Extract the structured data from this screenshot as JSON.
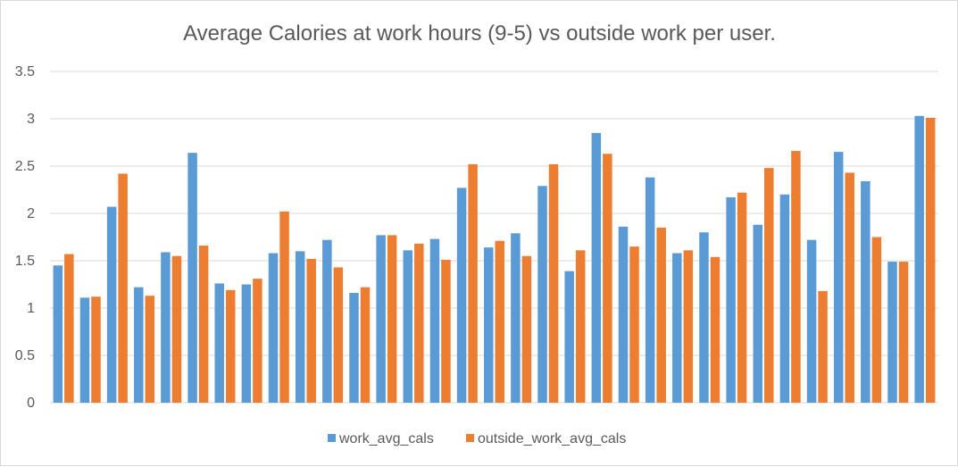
{
  "chart_data": {
    "type": "bar",
    "title": "Average Calories at work hours (9-5) vs outside work per user.",
    "xlabel": "",
    "ylabel": "",
    "ylim": [
      0,
      3.5
    ],
    "yticks": [
      "0",
      "0.5",
      "1",
      "1.5",
      "2",
      "2.5",
      "3",
      "3.5"
    ],
    "grid": true,
    "legend_position": "bottom",
    "series": [
      {
        "name": "work_avg_cals",
        "color": "#5b9bd5",
        "values": [
          1.45,
          1.11,
          2.07,
          1.22,
          1.59,
          2.64,
          1.26,
          1.25,
          1.58,
          1.6,
          1.72,
          1.16,
          1.77,
          1.61,
          1.73,
          2.27,
          1.64,
          1.79,
          2.29,
          1.39,
          2.85,
          1.86,
          2.38,
          1.58,
          1.8,
          2.17,
          1.88,
          2.2,
          1.72,
          2.65,
          2.34,
          1.49,
          3.03
        ]
      },
      {
        "name": "outside_work_avg_cals",
        "color": "#ed7d31",
        "values": [
          1.57,
          1.12,
          2.42,
          1.13,
          1.55,
          1.66,
          1.19,
          1.31,
          2.02,
          1.52,
          1.43,
          1.22,
          1.77,
          1.68,
          1.51,
          2.52,
          1.71,
          1.55,
          2.52,
          1.61,
          2.63,
          1.65,
          1.85,
          1.61,
          1.54,
          2.22,
          2.48,
          2.66,
          1.18,
          2.43,
          1.75,
          1.49,
          3.01
        ]
      }
    ]
  }
}
